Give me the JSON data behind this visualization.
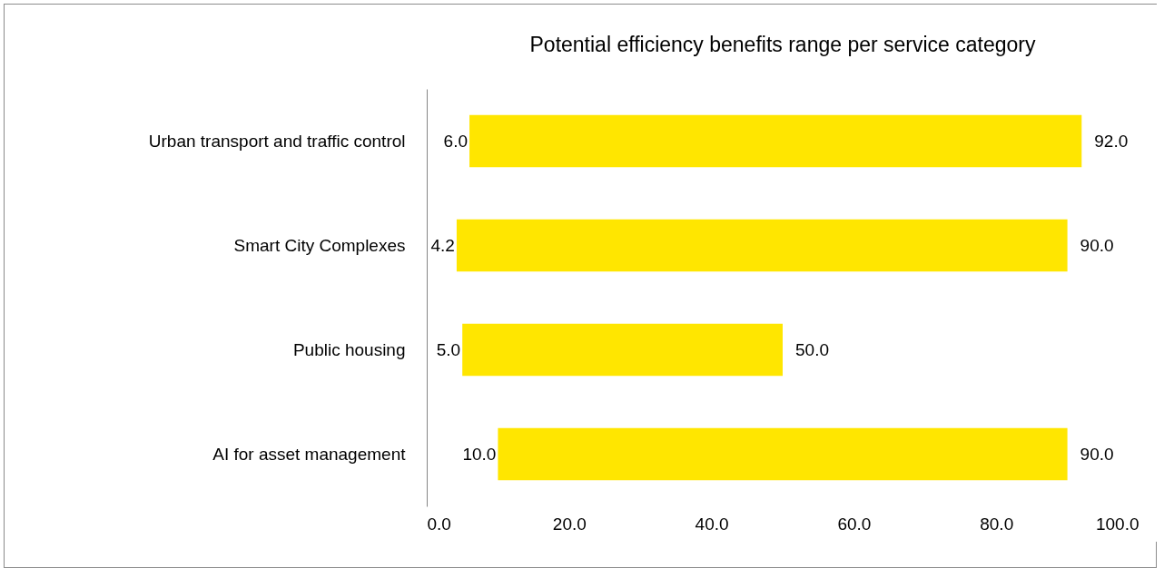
{
  "chart_data": {
    "type": "bar",
    "orientation": "horizontal",
    "title": "Potential efficiency benefits range per service category",
    "categories": [
      "Urban transport and traffic control",
      "Smart City Complexes",
      "Public housing",
      "AI for asset management"
    ],
    "base": [
      6,
      4.2,
      5,
      10
    ],
    "values": [
      86,
      85.8,
      45,
      80
    ],
    "color": "#ffe600",
    "xlim": [
      0,
      100
    ],
    "xticks": [
      {
        "value": 0,
        "label": "0.0"
      },
      {
        "value": 20,
        "label": "20.0"
      },
      {
        "value": 40,
        "label": "40.0"
      },
      {
        "value": 60,
        "label": "60.0"
      },
      {
        "value": 80,
        "label": "80.0"
      },
      {
        "value": 100,
        "label": "100.0"
      }
    ],
    "grid": false,
    "annotations": [
      {
        "text": "6.0",
        "x": 6,
        "y": "Urban transport and traffic control"
      },
      {
        "text": "92.0",
        "x": 92,
        "y": "Urban transport and traffic control"
      },
      {
        "text": "4.2",
        "x": 4.2,
        "y": "Smart City Complexes"
      },
      {
        "text": "90.0",
        "x": 90,
        "y": "Smart City Complexes"
      },
      {
        "text": "5.0",
        "x": 5,
        "y": "Public housing"
      },
      {
        "text": "50.0",
        "x": 50,
        "y": "Public housing"
      },
      {
        "text": "10.0",
        "x": 10,
        "y": "AI for asset management"
      },
      {
        "text": "90.0",
        "x": 90,
        "y": "AI for asset management"
      }
    ]
  }
}
